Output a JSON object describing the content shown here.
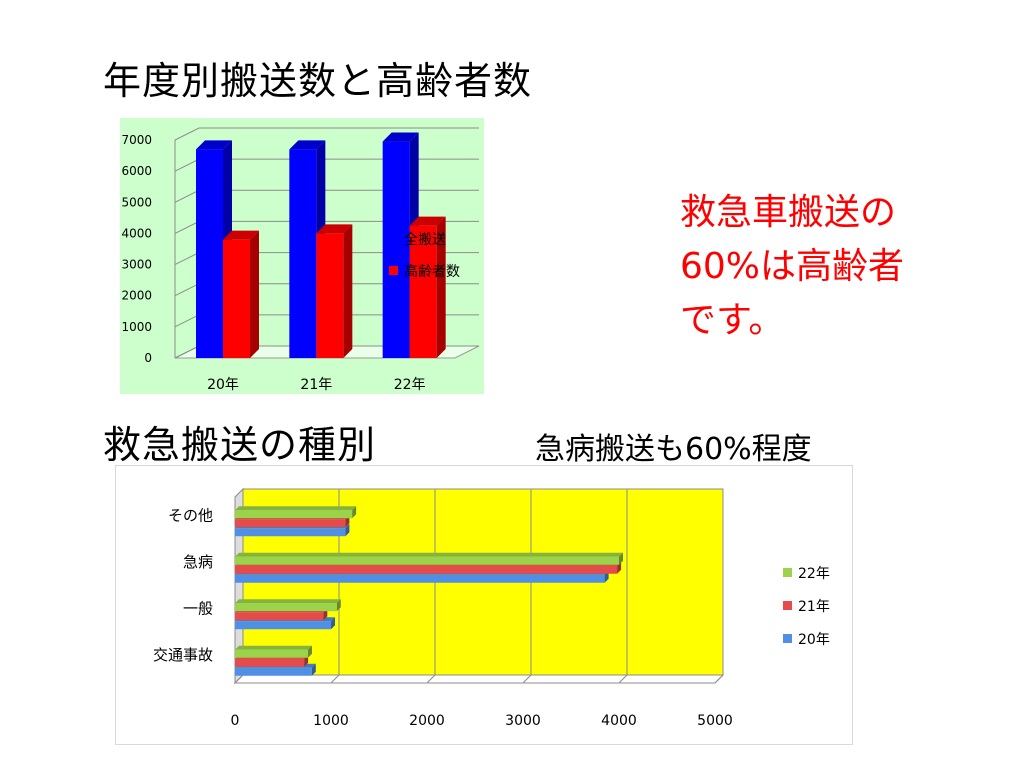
{
  "page": {
    "title1": "年度別搬送数と高齢者数",
    "title2": "救急搬送の種別",
    "subtitle2": "急病搬送も60%程度",
    "note": [
      "救急車搬送の",
      "60%は高齢者",
      "です。"
    ]
  },
  "colors": {
    "chart1_bg": "#ccffcc",
    "all_transport": "#0000ff",
    "elderly": "#ff0000",
    "chart2_plot_bg": "#ffff00",
    "s22": "#9bd34a",
    "s21": "#e64b4b",
    "s20": "#4f8fe6",
    "note_text": "#ff0000"
  },
  "chart_data": [
    {
      "type": "bar",
      "categories": [
        "20年",
        "21年",
        "22年"
      ],
      "series": [
        {
          "name": "全搬送",
          "values": [
            6700,
            6700,
            6950
          ]
        },
        {
          "name": "高齢者数",
          "values": [
            3800,
            4000,
            4250
          ]
        }
      ],
      "yticks": [
        "0",
        "1000",
        "2000",
        "3000",
        "4000",
        "5000",
        "6000",
        "7000"
      ],
      "ylim": [
        0,
        7000
      ],
      "grid": true,
      "legend": "right"
    },
    {
      "type": "bar",
      "orientation": "horizontal",
      "categories": [
        "交通事故",
        "一般",
        "急病",
        "その他"
      ],
      "series": [
        {
          "name": "20年",
          "values": [
            800,
            1000,
            3850,
            1150
          ]
        },
        {
          "name": "21年",
          "values": [
            720,
            920,
            3980,
            1150
          ]
        },
        {
          "name": "22年",
          "values": [
            760,
            1060,
            4000,
            1220
          ]
        }
      ],
      "xticks": [
        "0",
        "1000",
        "2000",
        "3000",
        "4000",
        "5000"
      ],
      "xlim": [
        0,
        5000
      ],
      "grid": true,
      "legend": "right"
    }
  ]
}
